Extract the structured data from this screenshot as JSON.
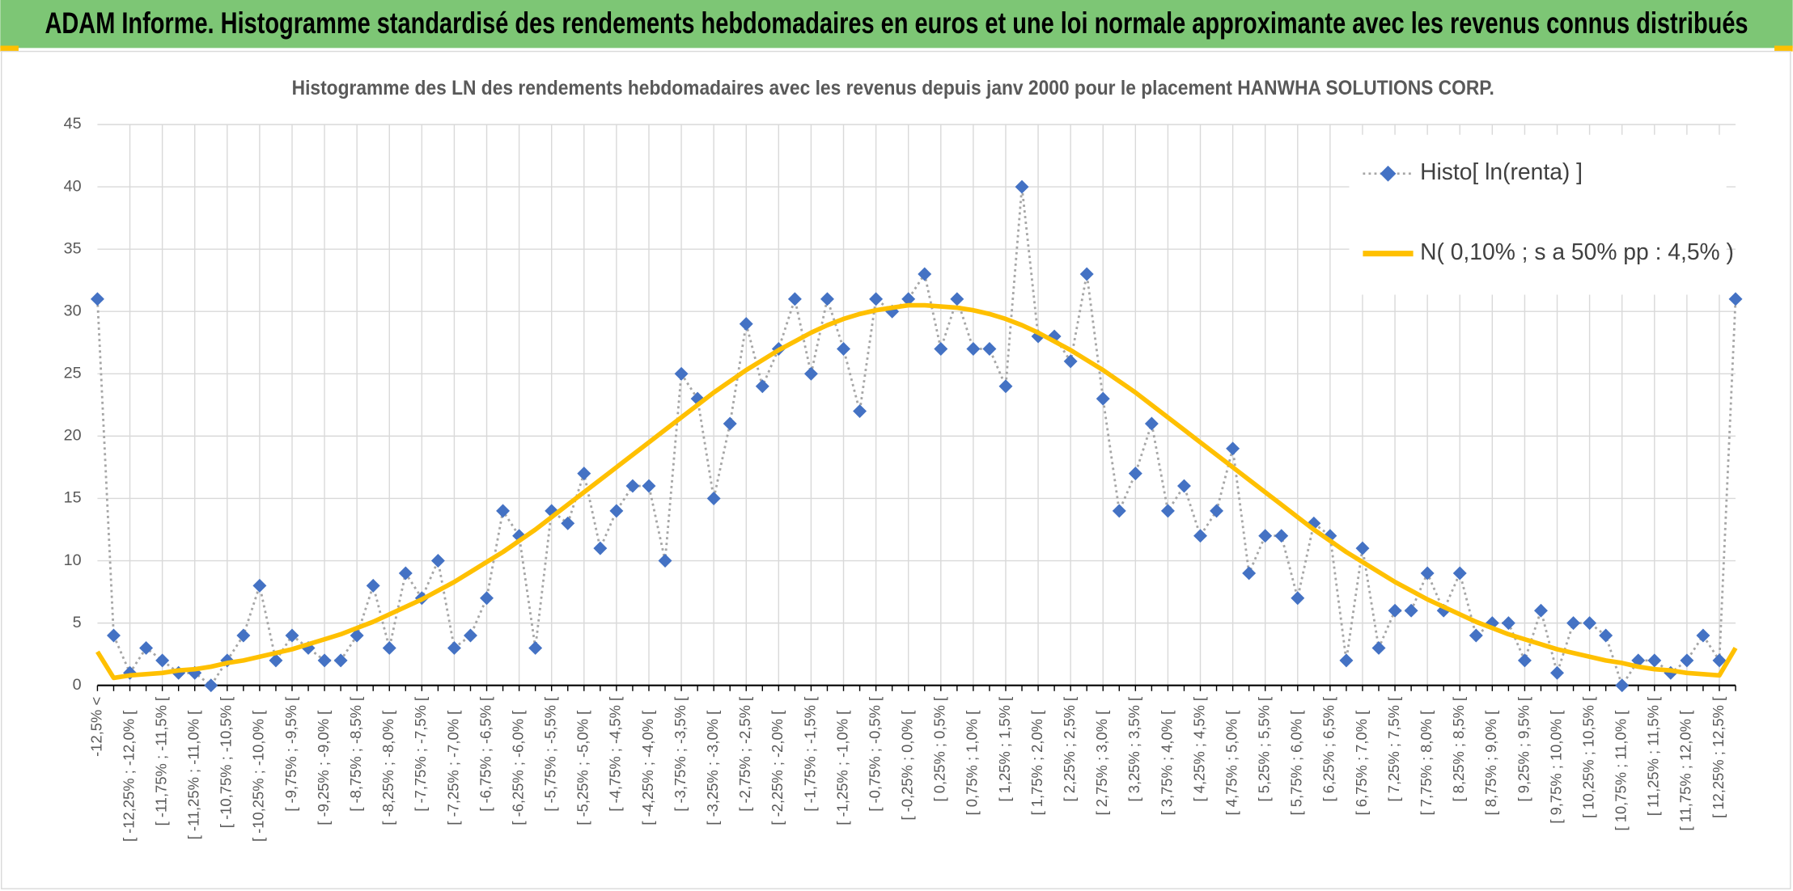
{
  "header": {
    "title": "ADAM Informe. Histogramme standardisé des rendements hebdomadaires en euros et une loi normale approximante avec les revenus connus distribués"
  },
  "chart_data": {
    "type": "line",
    "title": "Histogramme des LN des rendements hebdomadaires avec les revenus depuis janv 2000 pour le placement HANWHA SOLUTIONS CORP.",
    "categories": [
      "-12,5% <",
      null,
      "[ -12,25% ; -12,0% [",
      null,
      "[ -11,75% ; -11,5% [",
      null,
      "[ -11,25% ; -11,0% [",
      null,
      "[ -10,75% ; -10,5% [",
      null,
      "[ -10,25% ; -10,0% [",
      null,
      "[ -9,75% ; -9,5% [",
      null,
      "[ -9,25% ; -9,0% [",
      null,
      "[ -8,75% ; -8,5% [",
      null,
      "[ -8,25% ; -8,0% [",
      null,
      "[ -7,75% ; -7,5% [",
      null,
      "[ -7,25% ; -7,0% [",
      null,
      "[ -6,75% ; -6,5% [",
      null,
      "[ -6,25% ; -6,0% [",
      null,
      "[ -5,75% ; -5,5% [",
      null,
      "[ -5,25% ; -5,0% [",
      null,
      "[ -4,75% ; -4,5% [",
      null,
      "[ -4,25% ; -4,0% [",
      null,
      "[ -3,75% ; -3,5% [",
      null,
      "[ -3,25% ; -3,0% [",
      null,
      "[ -2,75% ; -2,5% [",
      null,
      "[ -2,25% ; -2,0% [",
      null,
      "[ -1,75% ; -1,5% [",
      null,
      "[ -1,25% ; -1,0% [",
      null,
      "[ -0,75% ; -0,5% [",
      null,
      "[ -0,25% ; 0,0% [",
      null,
      "[ 0,25% ; 0,5% [",
      null,
      "[ 0,75% ; 1,0% [",
      null,
      "[ 1,25% ; 1,5% [",
      null,
      "[ 1,75% ; 2,0% [",
      null,
      "[ 2,25% ; 2,5% [",
      null,
      "[ 2,75% ; 3,0% [",
      null,
      "[ 3,25% ; 3,5% [",
      null,
      "[ 3,75% ; 4,0% [",
      null,
      "[ 4,25% ; 4,5% [",
      null,
      "[ 4,75% ; 5,0% [",
      null,
      "[ 5,25% ; 5,5% [",
      null,
      "[ 5,75% ; 6,0% [",
      null,
      "[ 6,25% ; 6,5% [",
      null,
      "[ 6,75% ; 7,0% [",
      null,
      "[ 7,25% ; 7,5% [",
      null,
      "[ 7,75% ; 8,0% [",
      null,
      "[ 8,25% ; 8,5% [",
      null,
      "[ 8,75% ; 9,0% [",
      null,
      "[ 9,25% ; 9,5% [",
      null,
      "[ 9,75% ; 10,0% [",
      null,
      "[ 10,25% ; 10,5% [",
      null,
      "[ 10,75% ; 11,0% [",
      null,
      "[ 11,25% ; 11,5% [",
      null,
      "[ 11,75% ; 12,0% [",
      null,
      "[ 12,25% ; 12,5% [",
      null
    ],
    "series": [
      {
        "name": "Histo[ ln(renta) ]",
        "color": "#4472c4",
        "line_color": "#a6a6a6",
        "marker": "diamond",
        "values": [
          31,
          4,
          1,
          3,
          2,
          1,
          1,
          0,
          2,
          4,
          8,
          2,
          4,
          3,
          2,
          2,
          4,
          8,
          3,
          9,
          7,
          10,
          3,
          4,
          7,
          14,
          12,
          3,
          14,
          13,
          17,
          11,
          14,
          16,
          16,
          10,
          25,
          23,
          15,
          21,
          29,
          24,
          27,
          31,
          25,
          31,
          27,
          22,
          31,
          30,
          31,
          33,
          27,
          31,
          27,
          27,
          24,
          40,
          28,
          28,
          26,
          33,
          23,
          14,
          17,
          21,
          14,
          16,
          12,
          14,
          19,
          9,
          12,
          12,
          7,
          13,
          12,
          2,
          11,
          3,
          6,
          6,
          9,
          6,
          9,
          4,
          5,
          5,
          2,
          6,
          1,
          5,
          5,
          4,
          0,
          2,
          2,
          1,
          2,
          4,
          2,
          31
        ]
      },
      {
        "name": "N( 0,10% ; s a 50% pp : 4,5% )",
        "color": "#ffc000",
        "values": [
          2.7,
          0.6,
          0.8,
          0.9,
          1.0,
          1.2,
          1.3,
          1.5,
          1.8,
          2.0,
          2.3,
          2.6,
          2.9,
          3.3,
          3.7,
          4.1,
          4.6,
          5.1,
          5.7,
          6.3,
          6.9,
          7.6,
          8.3,
          9.1,
          9.9,
          10.7,
          11.6,
          12.5,
          13.5,
          14.5,
          15.5,
          16.5,
          17.5,
          18.5,
          19.5,
          20.5,
          21.5,
          22.5,
          23.5,
          24.4,
          25.3,
          26.1,
          26.9,
          27.6,
          28.3,
          28.9,
          29.4,
          29.8,
          30.1,
          30.3,
          30.5,
          30.5,
          30.4,
          30.3,
          30.1,
          29.8,
          29.4,
          28.9,
          28.3,
          27.6,
          26.9,
          26.1,
          25.3,
          24.4,
          23.5,
          22.5,
          21.5,
          20.5,
          19.5,
          18.5,
          17.5,
          16.5,
          15.5,
          14.5,
          13.5,
          12.5,
          11.6,
          10.7,
          9.9,
          9.1,
          8.3,
          7.6,
          6.9,
          6.3,
          5.7,
          5.1,
          4.6,
          4.1,
          3.7,
          3.3,
          2.9,
          2.6,
          2.3,
          2.0,
          1.8,
          1.5,
          1.3,
          1.2,
          1.0,
          0.9,
          0.8,
          3.0
        ]
      }
    ],
    "ylim": [
      0,
      45
    ],
    "yticks": [
      0,
      5,
      10,
      15,
      20,
      25,
      30,
      35,
      40,
      45
    ],
    "grid": true,
    "legend": "top-right"
  }
}
